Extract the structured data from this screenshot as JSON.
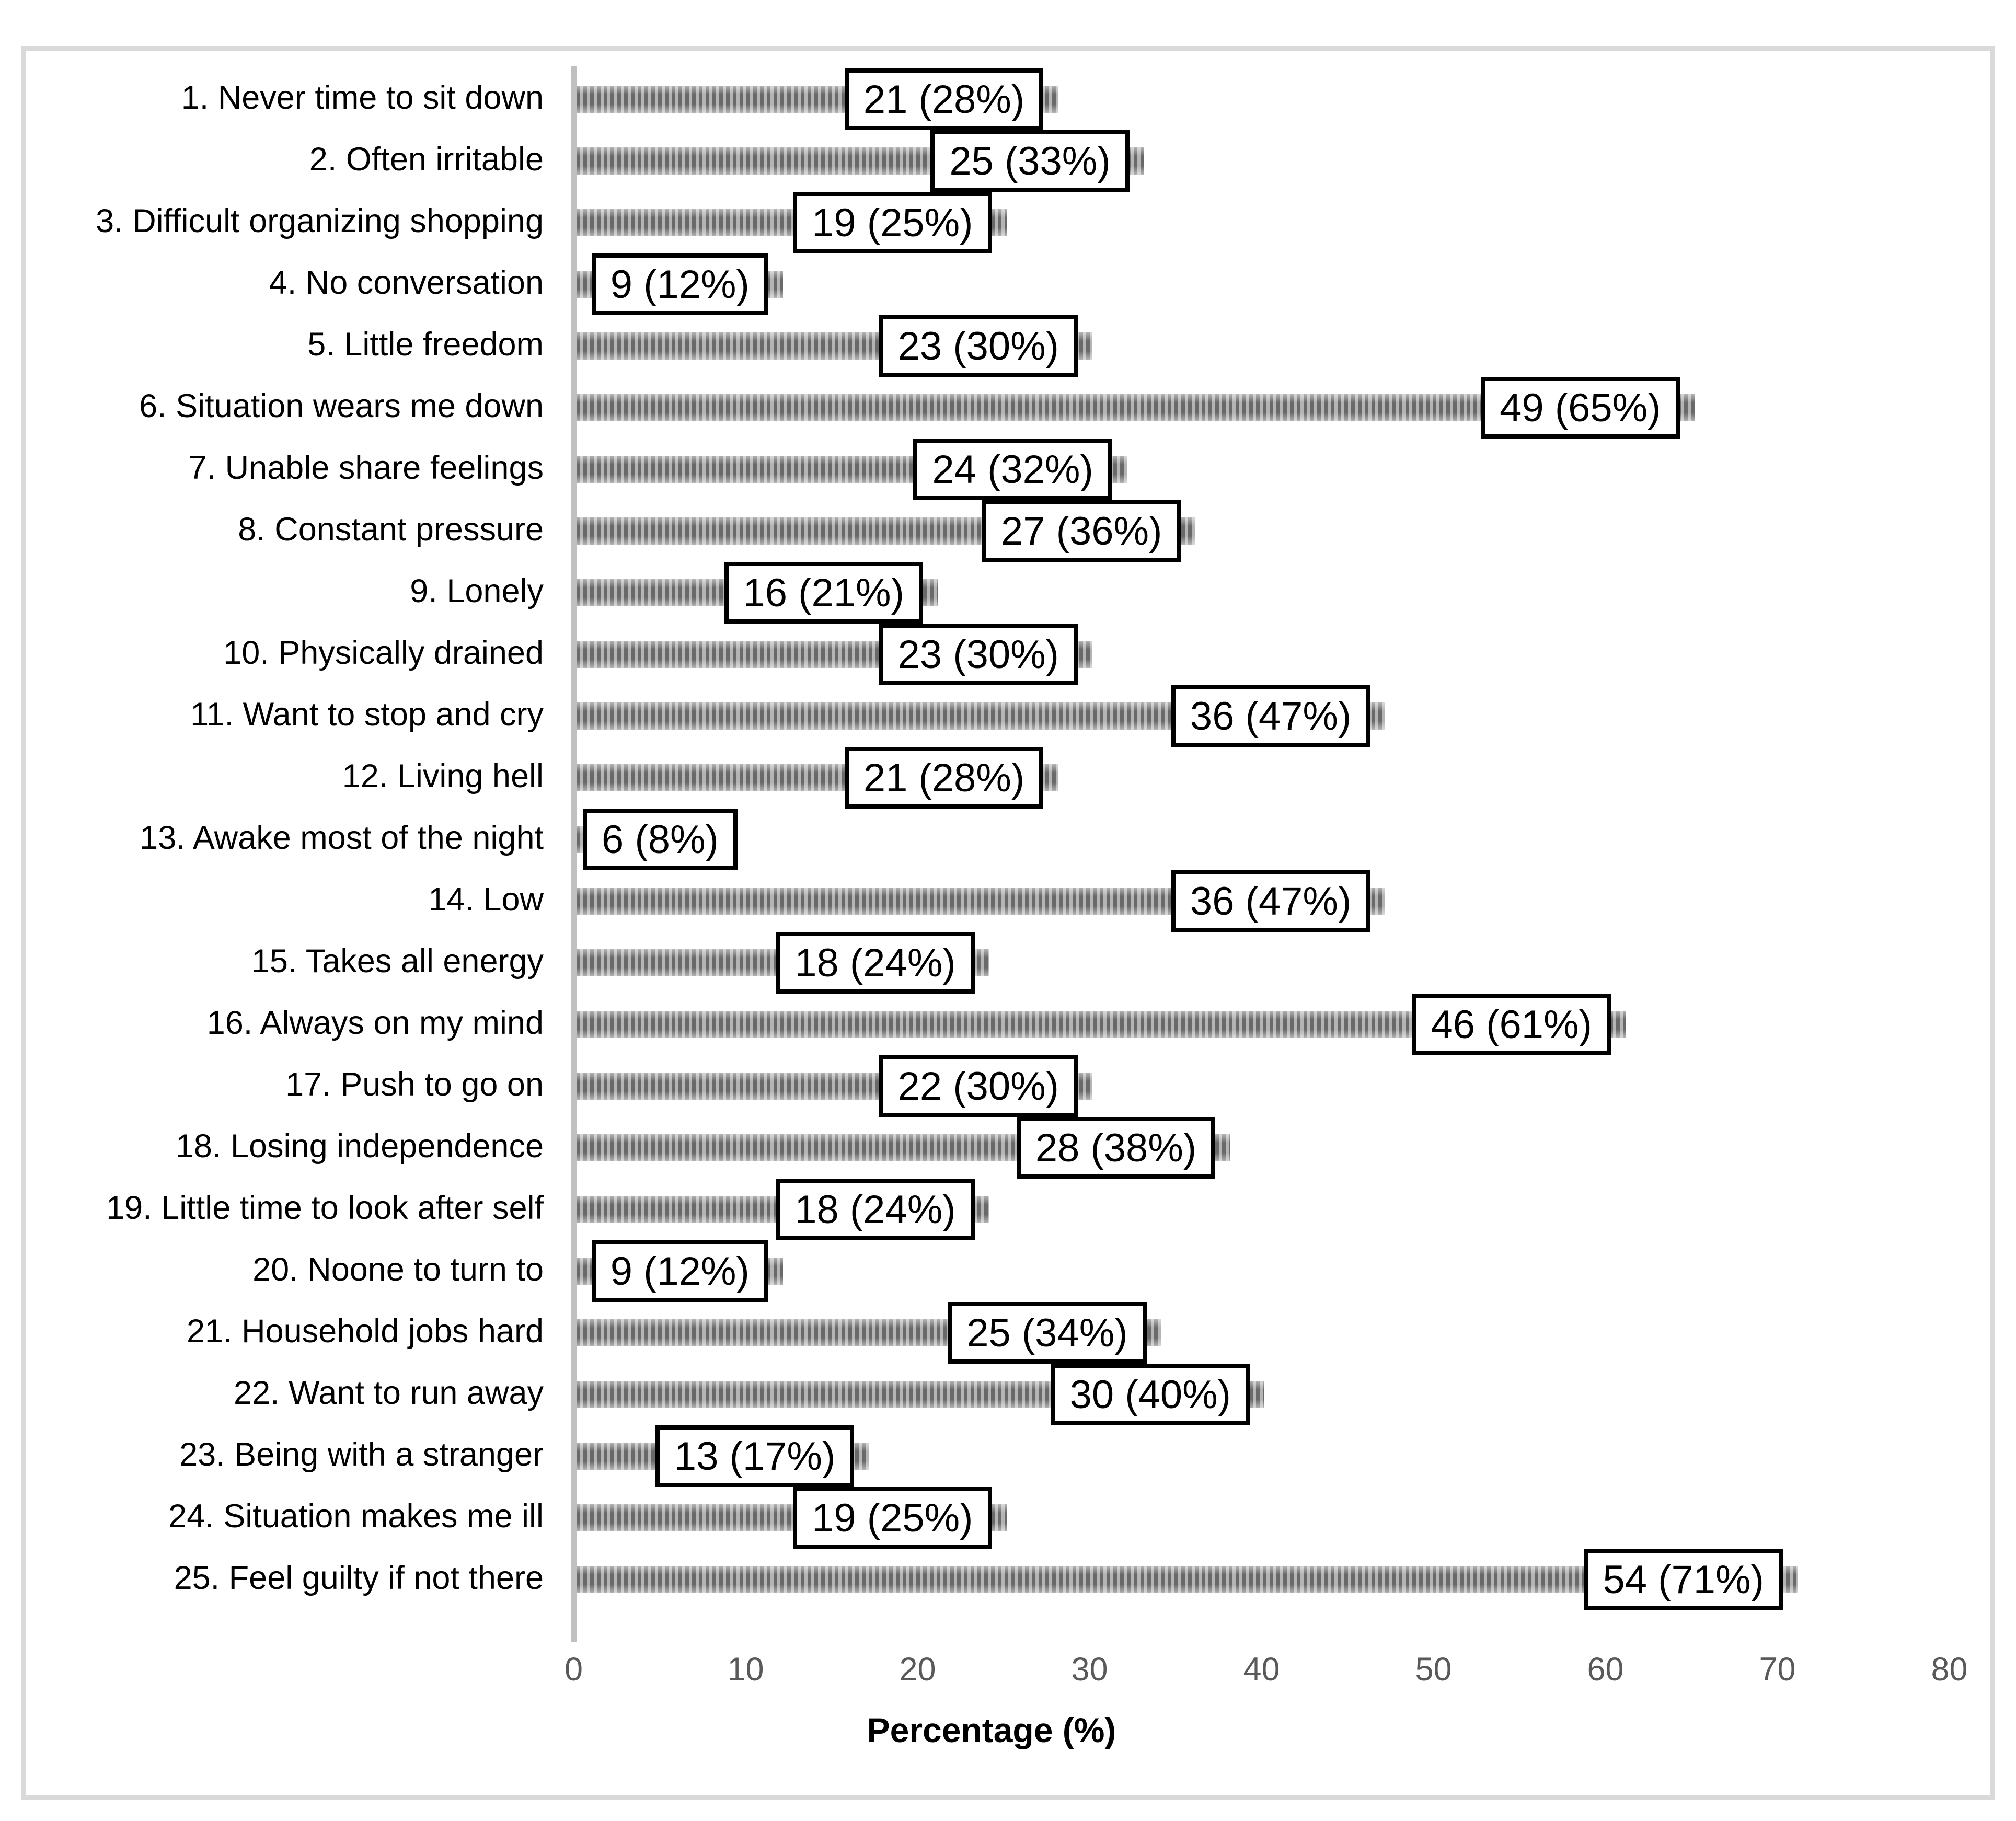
{
  "chart_data": {
    "type": "bar",
    "orientation": "horizontal",
    "title": "",
    "xlabel": "Percentage (%)",
    "ylabel": "",
    "xlim": [
      0,
      80
    ],
    "x_ticks": [
      0,
      10,
      20,
      30,
      40,
      50,
      60,
      70,
      80
    ],
    "grid": false,
    "legend": "none",
    "bar_pattern": "vertical-stripes",
    "categories": [
      "1. Never time to sit down",
      "2. Often irritable",
      "3. Difficult organizing shopping",
      "4. No conversation",
      "5. Little freedom",
      "6. Situation wears me down",
      "7. Unable share feelings",
      "8. Constant pressure",
      "9. Lonely",
      "10. Physically drained",
      "11. Want to stop and cry",
      "12. Living hell",
      "13. Awake most of the night",
      "14. Low",
      "15. Takes all energy",
      "16. Always on my mind",
      "17. Push to go on",
      "18. Losing independence",
      "19. Little time to look after self",
      "20. Noone to turn to",
      "21. Household jobs hard",
      "22. Want to run away",
      "23. Being with a stranger",
      "24. Situation makes me ill",
      "25. Feel guilty if not there"
    ],
    "series": [
      {
        "name": "n",
        "values": [
          21,
          25,
          19,
          9,
          23,
          49,
          24,
          27,
          16,
          23,
          36,
          21,
          6,
          36,
          18,
          46,
          22,
          28,
          18,
          9,
          25,
          30,
          13,
          19,
          54
        ]
      },
      {
        "name": "percent",
        "values": [
          28,
          33,
          25,
          12,
          30,
          65,
          32,
          36,
          21,
          30,
          47,
          28,
          8,
          47,
          24,
          61,
          30,
          38,
          24,
          12,
          34,
          40,
          17,
          25,
          71
        ]
      }
    ],
    "data_labels": [
      "21 (28%)",
      "25 (33%)",
      "19 (25%)",
      "9 (12%)",
      "23 (30%)",
      "49 (65%)",
      "24 (32%)",
      "27 (36%)",
      "16 (21%)",
      "23 (30%)",
      "36 (47%)",
      "21 (28%)",
      "6 (8%)",
      "36 (47%)",
      "18 (24%)",
      "46 (61%)",
      "22 (30%)",
      "28 (38%)",
      "18 (24%)",
      "9 (12%)",
      "25 (34%)",
      "30 (40%)",
      "13 (17%)",
      "19 (25%)",
      "54 (71%)"
    ]
  },
  "colors": {
    "stripe_dark": "#696969",
    "stripe_light": "#b4b4b4",
    "axis_line": "#c0c0c0",
    "tick_text": "#595959",
    "category_text": "#000000",
    "label_box_border": "#000000",
    "label_box_fill": "#ffffff",
    "figure_border": "#d9d9d9",
    "background": "#ffffff"
  }
}
